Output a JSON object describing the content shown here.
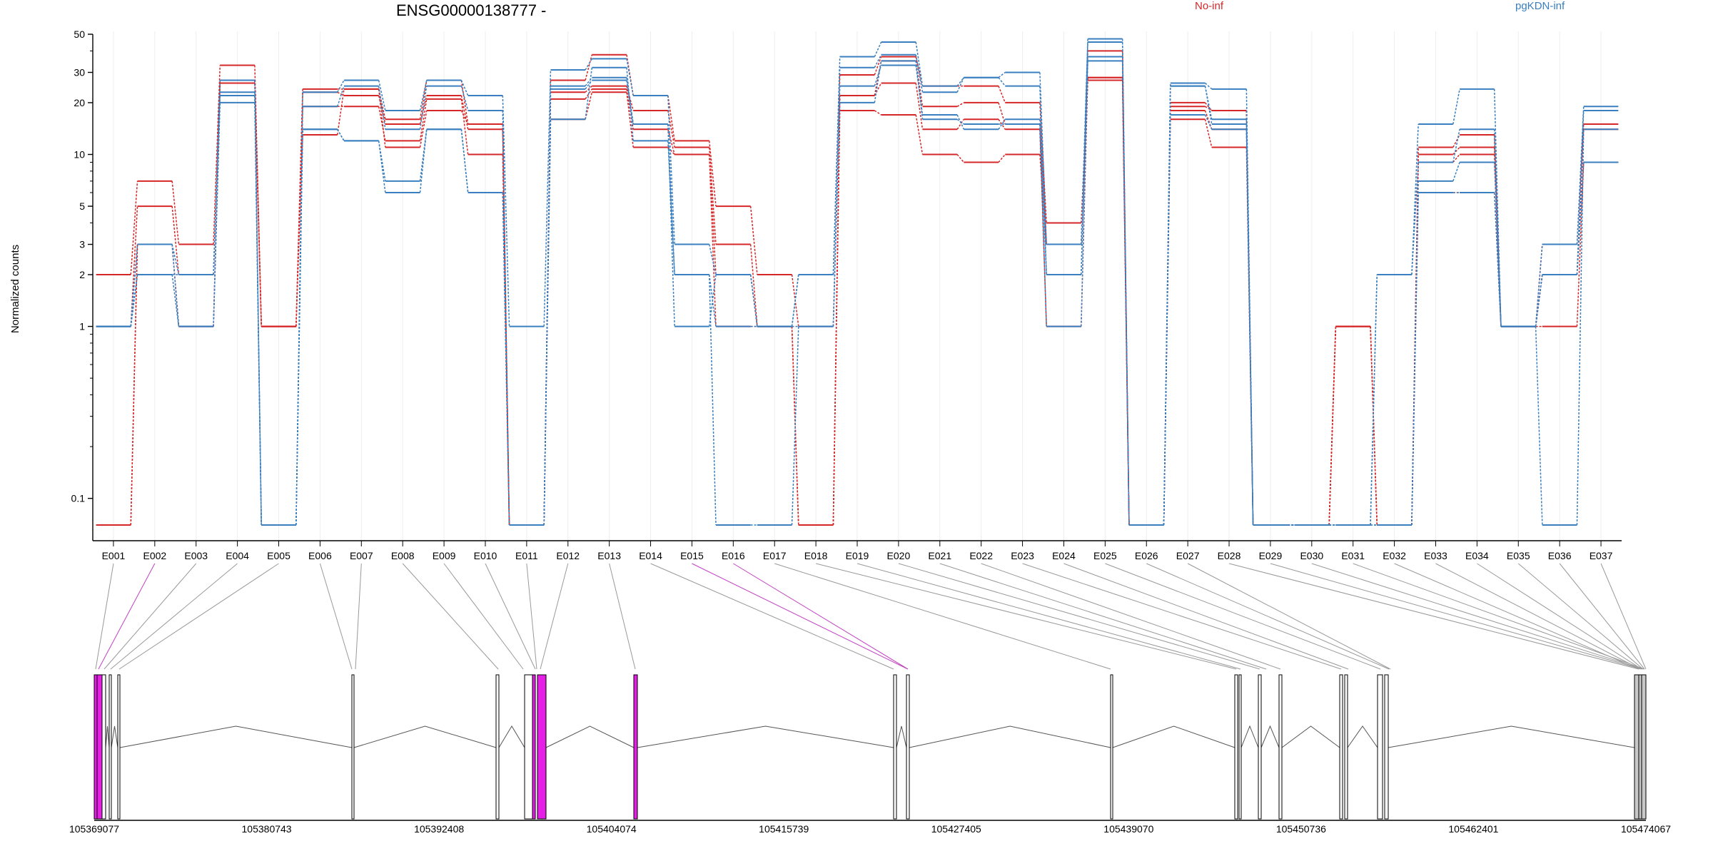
{
  "chart_data": {
    "type": "line",
    "title": "ENSG00000138777 -",
    "ylabel": "Normalized counts",
    "yscale": "log",
    "ylim": [
      0.07,
      50
    ],
    "yticks": [
      "0.1",
      "1",
      "2",
      "3",
      "5",
      "10",
      "20",
      "30",
      "50"
    ],
    "ytick_values": [
      0.1,
      1,
      2,
      3,
      5,
      10,
      20,
      30,
      50
    ],
    "legend": [
      {
        "name": "No-inf",
        "color": "#d62728"
      },
      {
        "name": "pgKDN-inf",
        "color": "#3a7fbf"
      }
    ],
    "legend_placement": "top-right",
    "grid": "vertical-light",
    "categories": [
      "E001",
      "E002",
      "E003",
      "E004",
      "E005",
      "E006",
      "E007",
      "E008",
      "E009",
      "E010",
      "E011",
      "E012",
      "E013",
      "E014",
      "E015",
      "E016",
      "E017",
      "E018",
      "E019",
      "E020",
      "E021",
      "E022",
      "E023",
      "E024",
      "E025",
      "E026",
      "E027",
      "E028",
      "E029",
      "E030",
      "E031",
      "E032",
      "E033",
      "E034",
      "E035",
      "E036",
      "E037"
    ],
    "series": [
      {
        "group": "No-inf",
        "color": "#d62728",
        "values": [
          2,
          7,
          3,
          33,
          1,
          24,
          24,
          16,
          27,
          15,
          0.07,
          27,
          38,
          22,
          12,
          5,
          2,
          1,
          29,
          37,
          25,
          25,
          20,
          4,
          28,
          0.07,
          20,
          18,
          0.07,
          0.07,
          1,
          0.07,
          11,
          13,
          1,
          3,
          15
        ]
      },
      {
        "group": "No-inf",
        "color": "#d62728",
        "values": [
          1,
          5,
          2,
          27,
          1,
          23,
          22,
          15,
          22,
          14,
          0.07,
          23,
          25,
          18,
          11,
          3,
          1,
          0.07,
          22,
          35,
          19,
          20,
          15,
          3,
          27,
          0.07,
          18,
          14,
          0.07,
          0.07,
          1,
          0.07,
          10,
          11,
          1,
          2,
          14
        ]
      },
      {
        "group": "No-inf",
        "color": "#d62728",
        "values": [
          0.07,
          3,
          1,
          26,
          1,
          19,
          19,
          12,
          21,
          10,
          0.07,
          21,
          24,
          14,
          10,
          2,
          1,
          0.07,
          22,
          26,
          14,
          16,
          14,
          1,
          28,
          0.07,
          19,
          18,
          0.07,
          0.07,
          1,
          0.07,
          9,
          10,
          1,
          1,
          9
        ]
      },
      {
        "group": "No-inf",
        "color": "#d62728",
        "values": [
          0.07,
          3,
          1,
          27,
          1,
          13,
          24,
          11,
          18,
          15,
          0.07,
          16,
          23,
          11,
          10,
          1,
          1,
          0.07,
          18,
          17,
          10,
          9,
          10,
          3,
          40,
          0.07,
          16,
          11,
          0.07,
          0.07,
          1,
          0.07,
          6,
          6,
          1,
          2,
          9
        ]
      },
      {
        "group": "pgKDN-inf",
        "color": "#3a7fbf",
        "values": [
          1,
          3,
          2,
          27,
          0.07,
          23,
          27,
          18,
          27,
          22,
          1,
          31,
          36,
          22,
          3,
          2,
          1,
          2,
          37,
          45,
          25,
          28,
          30,
          3,
          47,
          0.07,
          26,
          24,
          0.07,
          0.07,
          0.07,
          2,
          15,
          24,
          1,
          3,
          19
        ]
      },
      {
        "group": "pgKDN-inf",
        "color": "#3a7fbf",
        "values": [
          1,
          2,
          2,
          23,
          0.07,
          19,
          25,
          14,
          25,
          18,
          0.07,
          25,
          28,
          15,
          2,
          1,
          1,
          2,
          32,
          38,
          23,
          28,
          25,
          2,
          45,
          0.07,
          25,
          16,
          0.07,
          0.07,
          0.07,
          2,
          9,
          14,
          1,
          2,
          18
        ]
      },
      {
        "group": "pgKDN-inf",
        "color": "#3a7fbf",
        "values": [
          1,
          3,
          1,
          22,
          0.07,
          14,
          12,
          7,
          14,
          6,
          0.07,
          24,
          27,
          15,
          1,
          2,
          1,
          1,
          25,
          33,
          17,
          14,
          16,
          2,
          37,
          0.07,
          25,
          15,
          0.07,
          0.07,
          0.07,
          0.07,
          7,
          9,
          1,
          2,
          9
        ]
      },
      {
        "group": "pgKDN-inf",
        "color": "#3a7fbf",
        "values": [
          1,
          2,
          1,
          20,
          0.07,
          14,
          12,
          6,
          14,
          6,
          0.07,
          16,
          32,
          12,
          2,
          0.07,
          0.07,
          1,
          20,
          35,
          16,
          15,
          15,
          1,
          35,
          0.07,
          17,
          14,
          0.07,
          0.07,
          0.07,
          0.07,
          6,
          6,
          1,
          0.07,
          14
        ]
      }
    ],
    "gene_model": {
      "coord_labels": [
        "105369077",
        "105380743",
        "105392408",
        "105404074",
        "105415739",
        "105427405",
        "105439070",
        "105450736",
        "105462401",
        "105474067"
      ],
      "exon_colors": {
        "highlight": "#e61fe6",
        "normal": "#ffffff",
        "utr": "#c8c8c8"
      }
    }
  }
}
